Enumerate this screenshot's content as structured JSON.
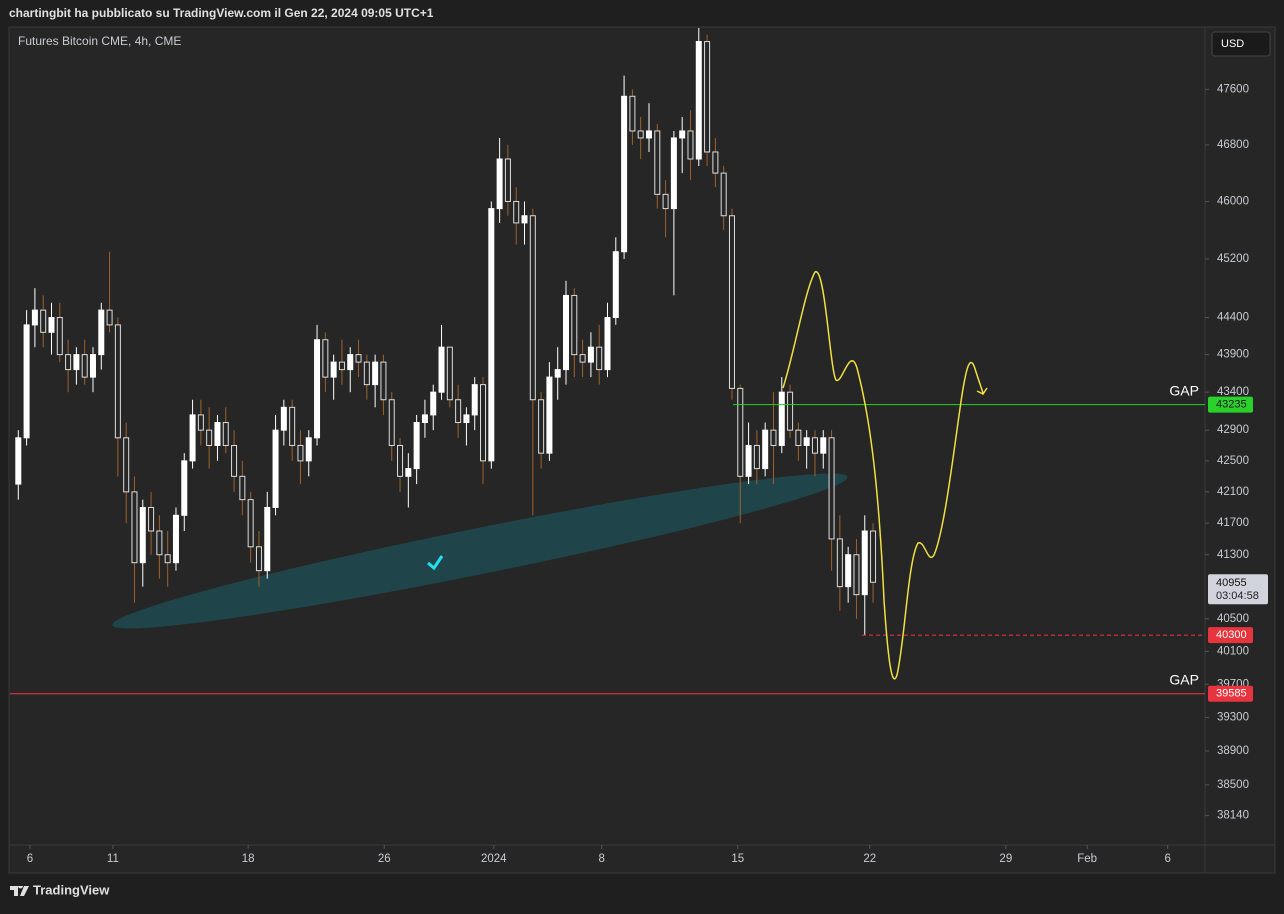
{
  "header": {
    "text": "chartingbit ha pubblicato su TradingView.com il Gen 22, 2024 09:05 UTC+1"
  },
  "footer": {
    "brand": "TradingView"
  },
  "chart_data": {
    "type": "candlestick",
    "title": "Futures Bitcoin CME, 4h, CME",
    "currency": "USD",
    "log_scale": true,
    "up_color": "#ffffff",
    "down_color": "#a0622a",
    "ylim": [
      37800,
      48500
    ],
    "yticks": [
      47600,
      46800,
      46000,
      45200,
      44400,
      43900,
      43400,
      42900,
      42500,
      42100,
      41700,
      41300,
      40500,
      40100,
      39700,
      39300,
      38900,
      38500,
      38140
    ],
    "xlim": [
      0,
      144
    ],
    "xticks": [
      {
        "value": 2.4,
        "label": "6"
      },
      {
        "value": 12.4,
        "label": "11"
      },
      {
        "value": 28.7,
        "label": "18"
      },
      {
        "value": 45.1,
        "label": "26"
      },
      {
        "value": 58.3,
        "label": "2024"
      },
      {
        "value": 71.3,
        "label": "8"
      },
      {
        "value": 87.7,
        "label": "15"
      },
      {
        "value": 103.6,
        "label": "22"
      },
      {
        "value": 120,
        "label": "29"
      },
      {
        "value": 129.8,
        "label": "Feb"
      },
      {
        "value": 139.5,
        "label": "6"
      }
    ],
    "ohlc": [
      [
        42200,
        42900,
        42000,
        42800
      ],
      [
        42800,
        44500,
        42700,
        44300
      ],
      [
        44300,
        44800,
        44000,
        44500
      ],
      [
        44500,
        44700,
        44000,
        44200
      ],
      [
        44200,
        44600,
        43900,
        44400
      ],
      [
        44400,
        44600,
        43800,
        43900
      ],
      [
        43900,
        44100,
        43400,
        43700
      ],
      [
        43700,
        44000,
        43500,
        43900
      ],
      [
        43900,
        44100,
        43500,
        43600
      ],
      [
        43600,
        44000,
        43400,
        43900
      ],
      [
        43900,
        44600,
        43700,
        44500
      ],
      [
        44500,
        45300,
        44200,
        44300
      ],
      [
        44300,
        44400,
        42300,
        42800
      ],
      [
        42800,
        43000,
        41700,
        42100
      ],
      [
        42100,
        42300,
        40700,
        41200
      ],
      [
        41200,
        42000,
        40900,
        41900
      ],
      [
        41900,
        42100,
        41300,
        41600
      ],
      [
        41600,
        41800,
        41000,
        41300
      ],
      [
        41300,
        41600,
        40900,
        41200
      ],
      [
        41200,
        41900,
        41100,
        41800
      ],
      [
        41800,
        42600,
        41600,
        42500
      ],
      [
        42500,
        43300,
        42400,
        43100
      ],
      [
        43100,
        43300,
        42700,
        42900
      ],
      [
        42900,
        43200,
        42400,
        42700
      ],
      [
        42700,
        43100,
        42500,
        43000
      ],
      [
        43000,
        43200,
        42600,
        42700
      ],
      [
        42700,
        42900,
        42100,
        42300
      ],
      [
        42300,
        42500,
        41800,
        42000
      ],
      [
        42000,
        42100,
        41200,
        41400
      ],
      [
        41400,
        41600,
        40900,
        41100
      ],
      [
        41100,
        42100,
        41000,
        41900
      ],
      [
        41900,
        43100,
        41800,
        42900
      ],
      [
        42900,
        43300,
        42700,
        43200
      ],
      [
        43200,
        43300,
        42500,
        42700
      ],
      [
        42700,
        42900,
        42200,
        42500
      ],
      [
        42500,
        42900,
        42300,
        42800
      ],
      [
        42800,
        44300,
        42700,
        44100
      ],
      [
        44100,
        44200,
        43400,
        43600
      ],
      [
        43600,
        43900,
        43300,
        43800
      ],
      [
        43800,
        44100,
        43500,
        43700
      ],
      [
        43700,
        44000,
        43400,
        43900
      ],
      [
        43900,
        44100,
        43600,
        43800
      ],
      [
        43800,
        43900,
        43300,
        43500
      ],
      [
        43500,
        43900,
        43200,
        43800
      ],
      [
        43800,
        43900,
        43100,
        43300
      ],
      [
        43300,
        43400,
        42500,
        42700
      ],
      [
        42700,
        42800,
        42100,
        42300
      ],
      [
        42300,
        42600,
        41900,
        42400
      ],
      [
        42400,
        43100,
        42200,
        43000
      ],
      [
        43000,
        43300,
        42800,
        43100
      ],
      [
        43100,
        43500,
        42900,
        43400
      ],
      [
        43400,
        44300,
        43300,
        44000
      ],
      [
        44000,
        44000,
        43200,
        43300
      ],
      [
        43300,
        43500,
        42800,
        43000
      ],
      [
        43000,
        43200,
        42700,
        43100
      ],
      [
        43100,
        43600,
        42900,
        43500
      ],
      [
        43500,
        43600,
        42200,
        42500
      ],
      [
        42500,
        46000,
        42400,
        45900
      ],
      [
        45900,
        46900,
        45700,
        46600
      ],
      [
        46600,
        46800,
        45800,
        46000
      ],
      [
        46000,
        46200,
        45400,
        45700
      ],
      [
        45700,
        46000,
        45400,
        45800
      ],
      [
        45800,
        45900,
        41800,
        43300
      ],
      [
        43300,
        43400,
        42400,
        42600
      ],
      [
        42600,
        43800,
        42500,
        43600
      ],
      [
        43600,
        44000,
        43300,
        43700
      ],
      [
        43700,
        44900,
        43500,
        44700
      ],
      [
        44700,
        44800,
        43600,
        43900
      ],
      [
        43900,
        44100,
        43600,
        43800
      ],
      [
        43800,
        44200,
        43600,
        44000
      ],
      [
        44000,
        44300,
        43500,
        43700
      ],
      [
        43700,
        44600,
        43600,
        44400
      ],
      [
        44400,
        45500,
        44300,
        45300
      ],
      [
        45300,
        47800,
        45200,
        47500
      ],
      [
        47500,
        47600,
        46800,
        47000
      ],
      [
        47000,
        47200,
        46600,
        46900
      ],
      [
        46900,
        47400,
        46700,
        47000
      ],
      [
        47000,
        47100,
        45900,
        46100
      ],
      [
        46100,
        46300,
        45500,
        45900
      ],
      [
        45900,
        47000,
        44700,
        46900
      ],
      [
        46900,
        47200,
        46400,
        47000
      ],
      [
        47000,
        47300,
        46300,
        46600
      ],
      [
        46600,
        48500,
        46500,
        48300
      ],
      [
        48300,
        48400,
        46500,
        46700
      ],
      [
        46700,
        46900,
        46200,
        46400
      ],
      [
        46400,
        46500,
        45600,
        45800
      ],
      [
        45800,
        45900,
        43300,
        43450
      ],
      [
        43450,
        43500,
        41700,
        42300
      ],
      [
        42300,
        43000,
        42200,
        42700
      ],
      [
        42700,
        42900,
        42200,
        42400
      ],
      [
        42400,
        43000,
        42300,
        42900
      ],
      [
        42900,
        43400,
        42200,
        42700
      ],
      [
        42700,
        43600,
        42600,
        43400
      ],
      [
        43400,
        43500,
        42800,
        42900
      ],
      [
        42900,
        43000,
        42500,
        42700
      ],
      [
        42700,
        42900,
        42400,
        42800
      ],
      [
        42800,
        42900,
        42300,
        42600
      ],
      [
        42600,
        42900,
        42400,
        42800
      ],
      [
        42800,
        42900,
        41100,
        41500
      ],
      [
        41500,
        41800,
        40600,
        40900
      ],
      [
        40900,
        41400,
        40700,
        41300
      ],
      [
        41300,
        41500,
        40500,
        40800
      ],
      [
        40800,
        41800,
        40300,
        41600
      ],
      [
        41600,
        41700,
        40700,
        40955
      ]
    ],
    "levels": [
      {
        "value": 43235,
        "color": "#1fd81f",
        "annotation": "GAP"
      },
      {
        "value": 40300,
        "color": "#f23645"
      },
      {
        "value": 39585,
        "color": "#f23645",
        "annotation": "GAP"
      }
    ],
    "last_price": 40955,
    "countdown": "03:04:58"
  }
}
